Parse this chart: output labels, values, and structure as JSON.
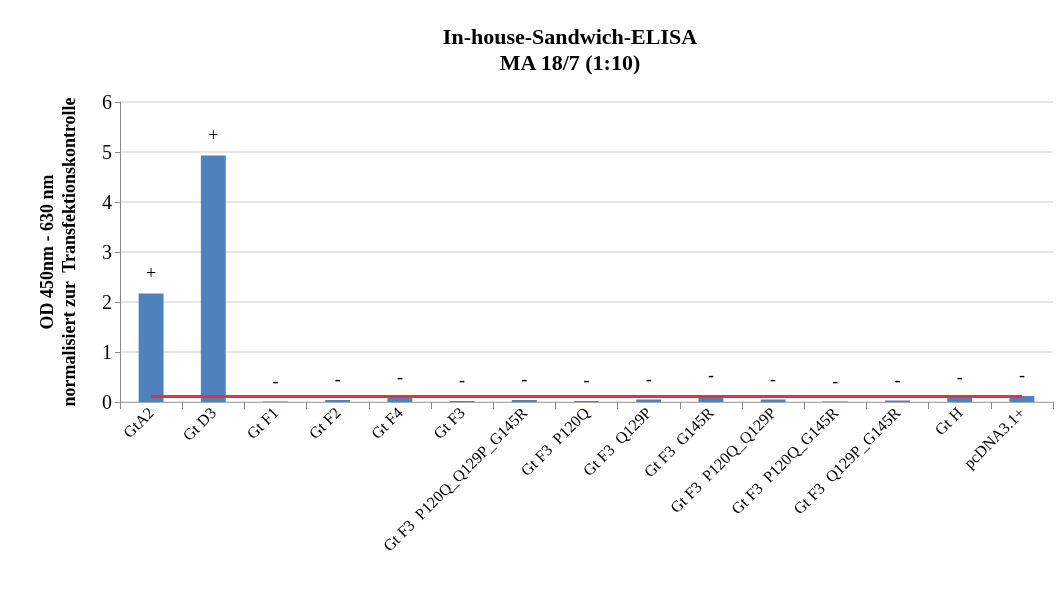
{
  "chart_data": {
    "type": "bar",
    "title": "In-house-Sandwich-ELISA\nMA 18/7 (1:10)",
    "ylabel": "OD 450nm - 630 nm\nnormalisiert zur  Transfektionskontrolle",
    "categories": [
      "GtA2",
      "Gt D3",
      "Gt F1",
      "Gt F2",
      "Gt F4",
      "Gt F3",
      "Gt F3  P120Q_Q129P_G145R",
      "Gt F3  P120Q",
      "Gt F3  Q129P",
      "Gt F3  G145R",
      "Gt F3  P120Q_Q129P",
      "Gt F3  P120Q_G145R",
      "Gt F3  Q129P_G145R",
      "Gt H",
      "pcDNA3.1+"
    ],
    "values": [
      2.17,
      4.93,
      0.01,
      0.04,
      0.08,
      0.02,
      0.04,
      0.02,
      0.05,
      0.12,
      0.05,
      0.01,
      0.03,
      0.08,
      0.12
    ],
    "value_labels": [
      "+",
      "+",
      "-",
      "-",
      "-",
      "-",
      "-",
      "-",
      "-",
      "-",
      "-",
      "-",
      "-",
      "-",
      "-"
    ],
    "color": "#4f81bd",
    "ylim": [
      0,
      6
    ],
    "yticks": [
      0,
      1,
      2,
      3,
      4,
      5,
      6
    ],
    "grid": "y",
    "ref_lines": [
      {
        "axis": "y",
        "value": 0.12,
        "color": "#e5323c"
      }
    ]
  }
}
